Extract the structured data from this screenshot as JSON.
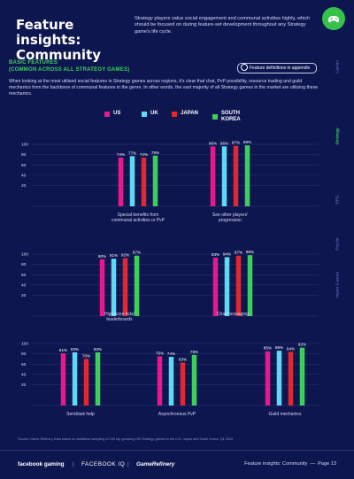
{
  "header": {
    "title": "Feature insights: Community",
    "intro": "Strategy players value social engagement and communal activities highly, which should be focused on during feature-set development throughout any Strategy game's life cycle."
  },
  "side_nav": {
    "items": [
      "Casino",
      "Strategy",
      "RPG",
      "Puzzle",
      "Hyper-Casual"
    ],
    "active": "Strategy"
  },
  "section": {
    "heading_line1": "BASIC FEATURES",
    "heading_line2": "(COMMON ACROSS ALL STRATEGY GAMES)",
    "appendix_label": "Feature definitions in appendix",
    "body": "When looking at the most utilized social features in Strategy games across regions, it's clear that chat, PvP possibility, resource trading and guild mechanics form the backbone of communal features in the genre. In other words, the vast majority of all Strategy games in the market are utilizing these mechanics."
  },
  "colors": {
    "US": "#e5198a",
    "UK": "#5fd8f5",
    "JAPAN": "#e0282e",
    "SOUTH KOREA": "#3cd05a",
    "background": "#0e1650",
    "accent": "#3cd05a"
  },
  "chart_data": {
    "type": "bar",
    "series_names": [
      "US",
      "UK",
      "JAPAN",
      "SOUTH KOREA"
    ],
    "legend_labels": [
      "US",
      "UK",
      "JAPAN",
      "SOUTH\nKOREA"
    ],
    "ylim": [
      0,
      100
    ],
    "yticks": [
      100,
      80,
      60,
      40,
      20
    ],
    "grid": true,
    "legend": "top-center",
    "panels": [
      {
        "categories": [
          "Special benefits from communal activities or PvP",
          "See other players' progression"
        ],
        "values": [
          [
            74,
            77,
            74,
            78
          ],
          [
            96,
            96,
            97,
            98
          ]
        ]
      },
      {
        "categories": [
          "Highscore lists / leaderboards",
          "Chat/messaging"
        ],
        "values": [
          [
            90,
            91,
            92,
            97
          ],
          [
            93,
            94,
            97,
            98
          ]
        ]
      },
      {
        "categories": [
          "Send/ask help",
          "Asynchronous PvP",
          "Guild mechanics"
        ],
        "values": [
          [
            81,
            83,
            70,
            83
          ],
          [
            75,
            74,
            63,
            78
          ],
          [
            85,
            86,
            84,
            92
          ]
        ]
      }
    ]
  },
  "footer": {
    "source": "Source: Game Refinery Data based on statistical sampling of 100 top grossing 100 Strategy games in the U.S. Japan and South Korea, Q1 2020",
    "brand1": "facebook gaming",
    "brand2": "FACEBOOK IQ",
    "brand3": "GameRefinery",
    "page_label": "Feature insights: Community",
    "page_number": "Page 13"
  }
}
